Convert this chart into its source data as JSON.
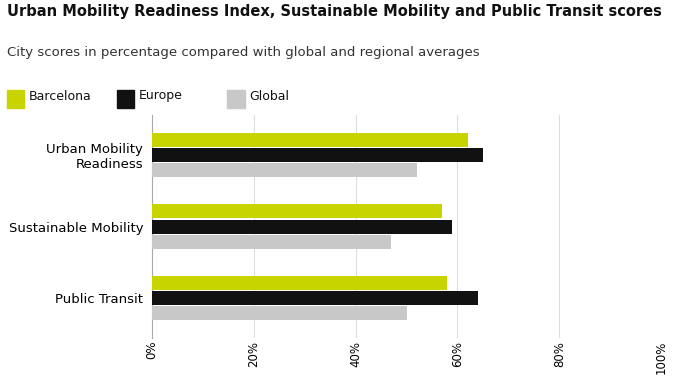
{
  "title": "Urban Mobility Readiness Index, Sustainable Mobility and Public Transit scores",
  "subtitle": "City scores in percentage compared with global and regional averages",
  "categories": [
    "Urban Mobility\nReadiness",
    "Sustainable Mobility",
    "Public Transit"
  ],
  "series": {
    "Barcelona": [
      0.62,
      0.57,
      0.58
    ],
    "Europe": [
      0.65,
      0.59,
      0.64
    ],
    "Global": [
      0.52,
      0.47,
      0.5
    ]
  },
  "colors": {
    "Barcelona": "#c8d400",
    "Europe": "#111111",
    "Global": "#c8c8c8"
  },
  "legend_labels": [
    "Barcelona",
    "Europe",
    "Global"
  ],
  "xlim": [
    0,
    1.0
  ],
  "xtick_values": [
    0,
    0.2,
    0.4,
    0.6,
    0.8,
    1.0
  ],
  "xtick_labels": [
    "0%",
    "20%",
    "40%",
    "60%",
    "80%",
    "100%"
  ],
  "background_color": "#ffffff",
  "title_fontsize": 10.5,
  "subtitle_fontsize": 9.5,
  "legend_fontsize": 9,
  "ytick_fontsize": 9.5,
  "xtick_fontsize": 8.5,
  "bar_height": 0.21
}
